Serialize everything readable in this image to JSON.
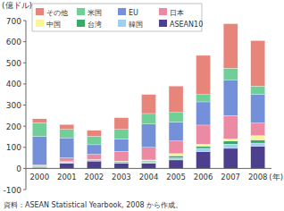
{
  "chart_data": {
    "type": "bar",
    "stacked": true,
    "y_label": "(億ドル)",
    "x_label": "(年)",
    "source": "資料：ASEAN Statistical Yearbook, 2008 から作成。",
    "categories": [
      "2000",
      "2001",
      "2002",
      "2003",
      "2004",
      "2005",
      "2006",
      "2007",
      "2008"
    ],
    "series": [
      {
        "name": "その他",
        "color": "#e8857a",
        "values": [
          18,
          23,
          28,
          55,
          90,
          125,
          185,
          210,
          215
        ]
      },
      {
        "name": "米国",
        "color": "#6fcf97",
        "values": [
          65,
          40,
          40,
          45,
          50,
          45,
          35,
          55,
          40
        ]
      },
      {
        "name": "EU",
        "color": "#7390d8",
        "values": [
          135,
          95,
          45,
          60,
          110,
          90,
          110,
          170,
          135
        ]
      },
      {
        "name": "日本",
        "color": "#ec8aa3",
        "values": [
          5,
          18,
          25,
          45,
          60,
          60,
          90,
          110,
          60
        ]
      },
      {
        "name": "中国",
        "color": "#fbf59a",
        "values": [
          2,
          2,
          2,
          2,
          5,
          10,
          10,
          10,
          20
        ]
      },
      {
        "name": "台湾",
        "color": "#3aa86a",
        "values": [
          2,
          3,
          3,
          5,
          5,
          10,
          10,
          15,
          15
        ]
      },
      {
        "name": "韓国",
        "color": "#9fd0ee",
        "values": [
          3,
          2,
          2,
          3,
          5,
          10,
          15,
          20,
          15
        ]
      },
      {
        "name": "ASEAN10",
        "color": "#4b3f8e",
        "values": [
          5,
          25,
          35,
          25,
          25,
          40,
          80,
          95,
          105
        ]
      }
    ],
    "ylim": [
      -100,
      700
    ],
    "yticks": [
      -100,
      0,
      100,
      200,
      300,
      400,
      500,
      600,
      700
    ],
    "grid": false,
    "legend": "top-left"
  }
}
